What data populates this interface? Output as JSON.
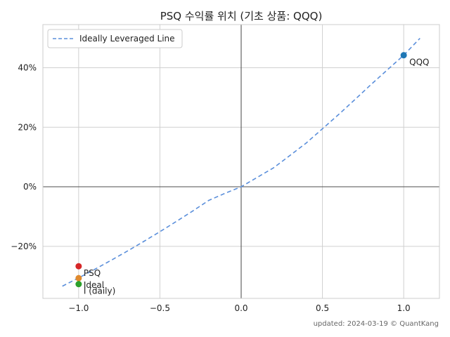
{
  "chart_data": {
    "type": "scatter",
    "title": "PSQ 수익률 위치 (기초 상품: QQQ)",
    "xlabel": "",
    "ylabel": "",
    "xlim": [
      -1.22,
      1.22
    ],
    "ylim": [
      -0.375,
      0.545
    ],
    "x_ticks": [
      {
        "value": -1.0,
        "label": "−1.0"
      },
      {
        "value": -0.5,
        "label": "−0.5"
      },
      {
        "value": 0.0,
        "label": "0.0"
      },
      {
        "value": 0.5,
        "label": "0.5"
      },
      {
        "value": 1.0,
        "label": "1.0"
      }
    ],
    "y_ticks": [
      {
        "value": -0.2,
        "label": "−20%"
      },
      {
        "value": 0.0,
        "label": "0%"
      },
      {
        "value": 0.2,
        "label": "20%"
      },
      {
        "value": 0.4,
        "label": "40%"
      }
    ],
    "grid": true,
    "legend_position": "top-left",
    "series": [
      {
        "name": "Ideally Leveraged Line",
        "style": "dashed-line",
        "color": "#5b8fdb",
        "x": [
          -1.1,
          -1.0,
          -0.9,
          -0.8,
          -0.7,
          -0.6,
          -0.5,
          -0.4,
          -0.3,
          -0.2,
          -0.1,
          0.0,
          0.1,
          0.2,
          0.3,
          0.4,
          0.5,
          0.6,
          0.7,
          0.8,
          0.9,
          1.0,
          1.1
        ],
        "y": [
          -0.334,
          -0.306,
          -0.277,
          -0.247,
          -0.216,
          -0.184,
          -0.151,
          -0.117,
          -0.082,
          -0.046,
          -0.022,
          0.0,
          0.032,
          0.064,
          0.105,
          0.147,
          0.195,
          0.243,
          0.293,
          0.344,
          0.393,
          0.442,
          0.499
        ]
      }
    ],
    "points": [
      {
        "label": "QQQ",
        "x": 1.0,
        "y": 0.442,
        "color": "#1f77b4"
      },
      {
        "label": "PSQ",
        "x": -1.0,
        "y": -0.267,
        "color": "#d62728"
      },
      {
        "label": "Ideal",
        "x": -1.0,
        "y": -0.307,
        "color": "#e08a2e"
      },
      {
        "label": "I (daily)",
        "x": -1.0,
        "y": -0.327,
        "color": "#2ca02c"
      }
    ],
    "footer": "updated: 2024-03-19 © QuantKang"
  }
}
